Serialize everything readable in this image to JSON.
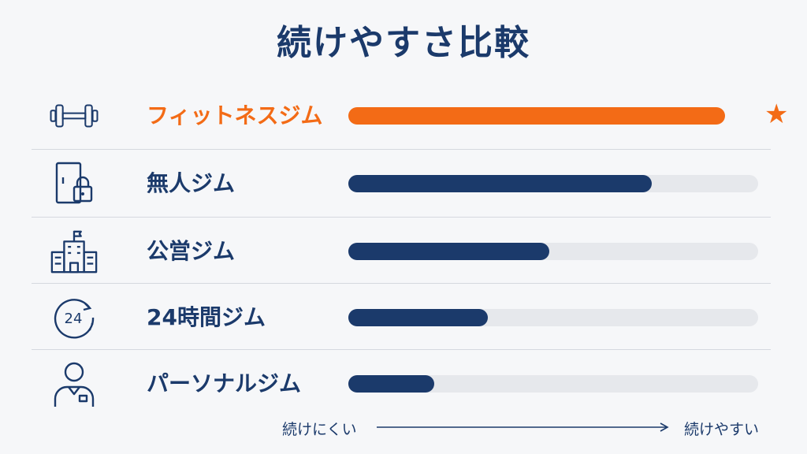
{
  "chart_data": {
    "type": "bar",
    "title": "続けやすさ比較",
    "categories": [
      "フィットネスジム",
      "無人ジム",
      "公営ジム",
      "24時間ジム",
      "パーソナルジム"
    ],
    "values": [
      92,
      74,
      49,
      34,
      21
    ],
    "ylim": [
      0,
      100
    ],
    "highlight_index": 0,
    "highlight_marker": "★",
    "axis_left_label": "続けにくい",
    "axis_right_label": "続けやすい",
    "orientation": "horizontal",
    "grid": false,
    "legend": "none"
  },
  "icons": [
    "dumbbell-icon",
    "door-lock-icon",
    "building-icon",
    "clock-24-icon",
    "trainer-icon"
  ],
  "colors": {
    "accent": "#f36b16",
    "primary": "#1b3a6b",
    "track": "#e6e8ec",
    "background": "#f6f7f9"
  }
}
